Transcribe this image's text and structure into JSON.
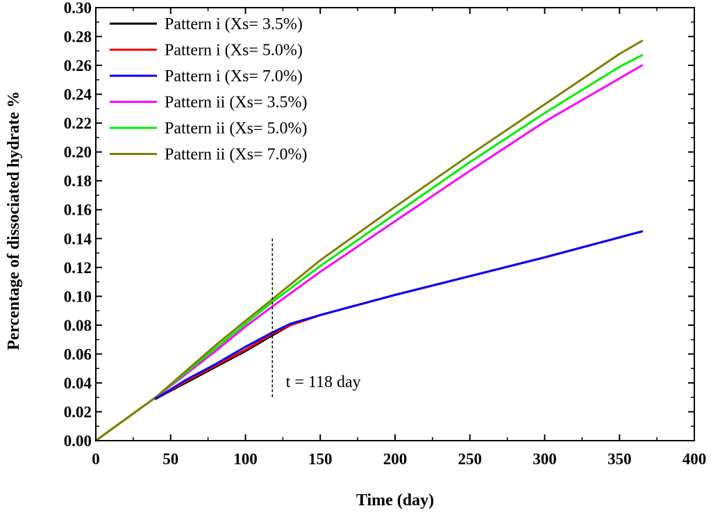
{
  "chart_data": {
    "type": "line",
    "title": "",
    "xlabel": "Time (day)",
    "ylabel": "Percentage of dissociated hydrate %",
    "xlim": [
      0,
      400
    ],
    "ylim": [
      0,
      0.3
    ],
    "x_ticks": [
      0,
      50,
      100,
      150,
      200,
      250,
      300,
      350,
      400
    ],
    "x_tick_labels": [
      "0",
      "50",
      "100",
      "150",
      "200",
      "250",
      "300",
      "350",
      "400"
    ],
    "y_ticks": [
      0,
      0.02,
      0.04,
      0.06,
      0.08,
      0.1,
      0.12,
      0.14,
      0.16,
      0.18,
      0.2,
      0.22,
      0.24,
      0.26,
      0.28,
      0.3
    ],
    "y_tick_labels": [
      "0.00",
      "0.02",
      "0.04",
      "0.06",
      "0.08",
      "0.10",
      "0.12",
      "0.14",
      "0.16",
      "0.18",
      "0.20",
      "0.22",
      "0.24",
      "0.26",
      "0.28",
      "0.30"
    ],
    "grid": false,
    "legend_position": "top-left",
    "series": [
      {
        "name": "Pattern i (Xs= 3.5%)",
        "color": "#000000",
        "x": [
          40,
          60,
          80,
          100,
          118,
          130,
          150,
          175,
          200,
          250,
          300,
          365
        ],
        "y": [
          0.029,
          0.04,
          0.051,
          0.062,
          0.073,
          0.08,
          0.087,
          0.094,
          0.101,
          0.114,
          0.127,
          0.145
        ]
      },
      {
        "name": "Pattern i (Xs= 5.0%)",
        "color": "#ff0000",
        "x": [
          40,
          60,
          80,
          100,
          118,
          130,
          150,
          175,
          200,
          250,
          300,
          365
        ],
        "y": [
          0.029,
          0.041,
          0.052,
          0.063,
          0.074,
          0.08,
          0.087,
          0.094,
          0.101,
          0.114,
          0.127,
          0.145
        ]
      },
      {
        "name": "Pattern i (Xs= 7.0%)",
        "color": "#0000ff",
        "x": [
          40,
          60,
          80,
          100,
          118,
          130,
          150,
          175,
          200,
          250,
          300,
          365
        ],
        "y": [
          0.029,
          0.042,
          0.053,
          0.065,
          0.075,
          0.081,
          0.087,
          0.094,
          0.101,
          0.114,
          0.127,
          0.145
        ]
      },
      {
        "name": "Pattern ii (Xs= 3.5%)",
        "color": "#ff00ff",
        "x": [
          0,
          20,
          40,
          60,
          80,
          100,
          118,
          150,
          200,
          250,
          300,
          350,
          365
        ],
        "y": [
          0,
          0.015,
          0.03,
          0.046,
          0.062,
          0.079,
          0.093,
          0.117,
          0.152,
          0.187,
          0.221,
          0.251,
          0.26
        ]
      },
      {
        "name": "Pattern ii (Xs= 5.0%)",
        "color": "#00ee00",
        "x": [
          0,
          20,
          40,
          60,
          80,
          100,
          118,
          150,
          200,
          250,
          300,
          350,
          365
        ],
        "y": [
          0,
          0.015,
          0.03,
          0.047,
          0.064,
          0.081,
          0.096,
          0.121,
          0.157,
          0.193,
          0.227,
          0.259,
          0.267
        ]
      },
      {
        "name": "Pattern ii (Xs= 7.0%)",
        "color": "#808000",
        "x": [
          0,
          20,
          40,
          60,
          80,
          100,
          118,
          150,
          200,
          250,
          300,
          350,
          365
        ],
        "y": [
          0,
          0.015,
          0.03,
          0.048,
          0.066,
          0.083,
          0.098,
          0.125,
          0.162,
          0.198,
          0.233,
          0.268,
          0.277
        ]
      }
    ],
    "annotations": [
      {
        "type": "vline",
        "x": 118,
        "y_range": [
          0.03,
          0.14
        ],
        "style": "dashed",
        "label": "t = 118 day",
        "label_x": 127,
        "label_y": 0.037
      }
    ]
  }
}
